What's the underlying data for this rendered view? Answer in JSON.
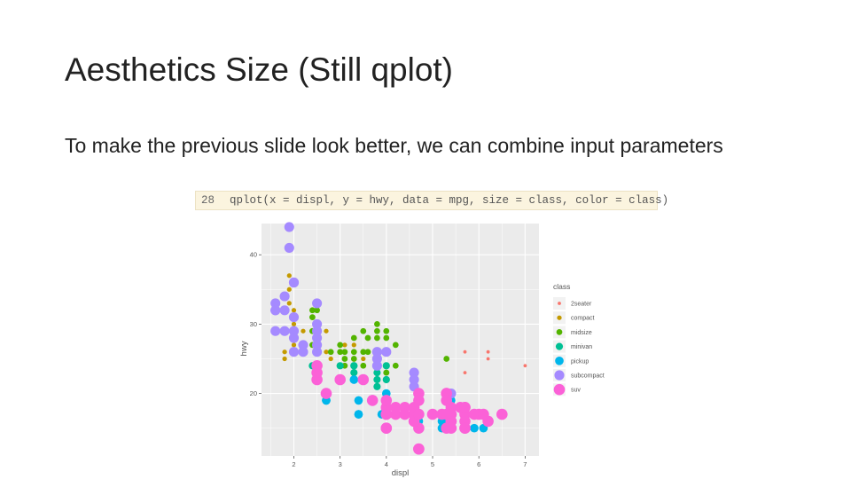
{
  "slide": {
    "title": "Aesthetics Size (Still qplot)",
    "body": "To make the previous slide look better, we can combine input parameters"
  },
  "code": {
    "line_number": "28",
    "text": "qplot(x = displ, y = hwy, data = mpg, size = class, color = class)"
  },
  "chart_data": {
    "type": "scatter",
    "xlabel": "displ",
    "ylabel": "hwy",
    "xlim": [
      1.3,
      7.3
    ],
    "ylim": [
      11,
      44.5
    ],
    "x_ticks": [
      2,
      3,
      4,
      5,
      6,
      7
    ],
    "y_ticks": [
      20,
      30,
      40
    ],
    "grid": true,
    "background": "#ebebeb",
    "legend": {
      "title": "class",
      "placement": "right"
    },
    "series": [
      {
        "name": "2seater",
        "color": "#f8766d",
        "size": 1,
        "points": [
          [
            5.7,
            26
          ],
          [
            5.7,
            23
          ],
          [
            6.2,
            26
          ],
          [
            6.2,
            25
          ],
          [
            7.0,
            24
          ]
        ]
      },
      {
        "name": "compact",
        "color": "#c49a00",
        "size": 2,
        "points": [
          [
            1.8,
            29
          ],
          [
            1.8,
            29
          ],
          [
            2.0,
            31
          ],
          [
            2.0,
            30
          ],
          [
            2.8,
            26
          ],
          [
            2.8,
            26
          ],
          [
            3.1,
            27
          ],
          [
            1.8,
            26
          ],
          [
            1.8,
            25
          ],
          [
            2.0,
            28
          ],
          [
            2.0,
            27
          ],
          [
            2.8,
            25
          ],
          [
            3.1,
            25
          ],
          [
            1.9,
            33
          ],
          [
            2.0,
            32
          ],
          [
            1.9,
            35
          ],
          [
            1.9,
            37
          ],
          [
            2.2,
            27
          ],
          [
            2.2,
            29
          ],
          [
            2.4,
            31
          ],
          [
            2.5,
            29
          ],
          [
            3.0,
            26
          ],
          [
            3.3,
            27
          ],
          [
            2.7,
            26
          ],
          [
            3.0,
            24
          ],
          [
            3.5,
            25
          ],
          [
            2.4,
            27
          ],
          [
            2.7,
            29
          ]
        ]
      },
      {
        "name": "midsize",
        "color": "#53b400",
        "size": 3,
        "points": [
          [
            2.4,
            29
          ],
          [
            2.4,
            27
          ],
          [
            3.1,
            26
          ],
          [
            3.5,
            29
          ],
          [
            3.6,
            26
          ],
          [
            2.2,
            26
          ],
          [
            2.2,
            27
          ],
          [
            2.4,
            32
          ],
          [
            2.4,
            31
          ],
          [
            3.3,
            28
          ],
          [
            3.8,
            28
          ],
          [
            3.8,
            29
          ],
          [
            4.0,
            28
          ],
          [
            3.3,
            26
          ],
          [
            3.3,
            25
          ],
          [
            3.0,
            26
          ],
          [
            2.5,
            32
          ],
          [
            2.5,
            30
          ],
          [
            2.5,
            27
          ],
          [
            3.0,
            27
          ],
          [
            3.5,
            26
          ],
          [
            4.0,
            24
          ],
          [
            3.1,
            25
          ],
          [
            5.3,
            25
          ],
          [
            2.4,
            24
          ],
          [
            3.5,
            24
          ],
          [
            2.8,
            26
          ],
          [
            4.0,
            22
          ],
          [
            4.0,
            23
          ],
          [
            4.2,
            24
          ],
          [
            4.6,
            23
          ],
          [
            4.2,
            27
          ],
          [
            3.8,
            26
          ],
          [
            3.8,
            30
          ],
          [
            4.0,
            29
          ],
          [
            3.1,
            24
          ],
          [
            3.6,
            28
          ],
          [
            4.0,
            23
          ]
        ]
      },
      {
        "name": "minivan",
        "color": "#00c094",
        "size": 4,
        "points": [
          [
            2.4,
            24
          ],
          [
            3.0,
            24
          ],
          [
            3.3,
            22
          ],
          [
            3.3,
            24
          ],
          [
            3.3,
            24
          ],
          [
            3.8,
            23
          ],
          [
            3.8,
            24
          ],
          [
            4.0,
            22
          ],
          [
            3.8,
            21
          ],
          [
            4.0,
            24
          ],
          [
            3.8,
            22
          ],
          [
            3.3,
            23
          ]
        ]
      },
      {
        "name": "pickup",
        "color": "#00b6eb",
        "size": 5,
        "points": [
          [
            2.7,
            20
          ],
          [
            2.7,
            19
          ],
          [
            3.4,
            19
          ],
          [
            3.4,
            17
          ],
          [
            4.0,
            18
          ],
          [
            4.0,
            17
          ],
          [
            4.7,
            17
          ],
          [
            4.7,
            16
          ],
          [
            4.7,
            17
          ],
          [
            5.2,
            17
          ],
          [
            5.2,
            15
          ],
          [
            5.7,
            17
          ],
          [
            5.9,
            15
          ],
          [
            4.7,
            15
          ],
          [
            4.7,
            16
          ],
          [
            4.7,
            17
          ],
          [
            3.7,
            19
          ],
          [
            3.9,
            17
          ],
          [
            5.2,
            17
          ],
          [
            5.2,
            16
          ],
          [
            5.7,
            17
          ],
          [
            6.1,
            15
          ],
          [
            2.7,
            19
          ],
          [
            3.4,
            17
          ],
          [
            4.0,
            20
          ],
          [
            4.6,
            17
          ],
          [
            5.4,
            17
          ],
          [
            5.4,
            18
          ],
          [
            5.4,
            19
          ],
          [
            4.6,
            16
          ],
          [
            4.2,
            17
          ],
          [
            4.6,
            17
          ],
          [
            3.3,
            22
          ]
        ]
      },
      {
        "name": "subcompact",
        "color": "#a58aff",
        "size": 6,
        "points": [
          [
            3.8,
            26
          ],
          [
            3.8,
            25
          ],
          [
            4.0,
            26
          ],
          [
            4.6,
            23
          ],
          [
            4.6,
            22
          ],
          [
            4.6,
            21
          ],
          [
            5.4,
            20
          ],
          [
            1.6,
            33
          ],
          [
            1.6,
            32
          ],
          [
            1.6,
            32
          ],
          [
            1.6,
            29
          ],
          [
            1.8,
            29
          ],
          [
            1.8,
            32
          ],
          [
            1.8,
            34
          ],
          [
            2.0,
            36
          ],
          [
            2.0,
            36
          ],
          [
            1.9,
            44
          ],
          [
            1.9,
            41
          ],
          [
            2.0,
            29
          ],
          [
            2.0,
            26
          ],
          [
            2.5,
            26
          ],
          [
            2.5,
            27
          ],
          [
            2.5,
            28
          ],
          [
            2.2,
            26
          ],
          [
            2.5,
            29
          ],
          [
            2.5,
            30
          ],
          [
            2.5,
            33
          ],
          [
            2.2,
            27
          ],
          [
            2.0,
            31
          ],
          [
            2.0,
            28
          ],
          [
            3.8,
            24
          ]
        ]
      },
      {
        "name": "suv",
        "color": "#fb61d7",
        "size": 7,
        "points": [
          [
            5.3,
            20
          ],
          [
            5.3,
            15
          ],
          [
            5.3,
            20
          ],
          [
            5.7,
            17
          ],
          [
            6.0,
            17
          ],
          [
            5.7,
            16
          ],
          [
            5.7,
            15
          ],
          [
            6.2,
            16
          ],
          [
            6.5,
            17
          ],
          [
            3.7,
            19
          ],
          [
            4.7,
            20
          ],
          [
            4.7,
            15
          ],
          [
            4.7,
            19
          ],
          [
            5.2,
            17
          ],
          [
            5.7,
            15
          ],
          [
            5.9,
            17
          ],
          [
            4.0,
            17
          ],
          [
            4.2,
            17
          ],
          [
            4.6,
            16
          ],
          [
            5.4,
            18
          ],
          [
            5.4,
            17
          ],
          [
            5.4,
            16
          ],
          [
            4.0,
            17
          ],
          [
            4.0,
            15
          ],
          [
            4.6,
            17
          ],
          [
            5.0,
            17
          ],
          [
            4.2,
            18
          ],
          [
            4.4,
            18
          ],
          [
            4.6,
            18
          ],
          [
            5.4,
            17
          ],
          [
            5.4,
            16
          ],
          [
            5.4,
            15
          ],
          [
            4.7,
            12
          ],
          [
            4.7,
            12
          ],
          [
            5.7,
            18
          ],
          [
            6.1,
            17
          ],
          [
            5.3,
            19
          ],
          [
            5.3,
            17
          ],
          [
            5.6,
            18
          ],
          [
            4.6,
            17
          ],
          [
            3.0,
            22
          ],
          [
            2.5,
            22
          ],
          [
            2.5,
            23
          ],
          [
            2.5,
            24
          ],
          [
            3.5,
            22
          ],
          [
            4.0,
            18
          ],
          [
            4.0,
            15
          ],
          [
            4.7,
            17
          ],
          [
            5.7,
            18
          ],
          [
            4.4,
            17
          ],
          [
            2.7,
            20
          ],
          [
            4.0,
            19
          ]
        ]
      }
    ]
  }
}
